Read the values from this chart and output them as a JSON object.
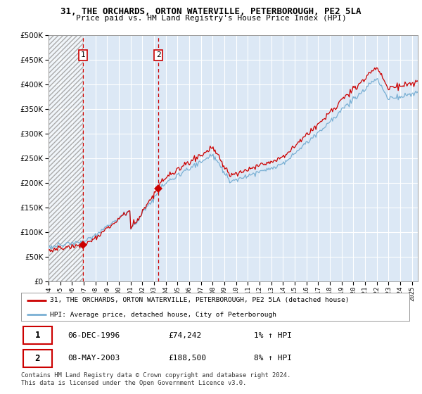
{
  "title_line1": "31, THE ORCHARDS, ORTON WATERVILLE, PETERBOROUGH, PE2 5LA",
  "title_line2": "Price paid vs. HM Land Registry's House Price Index (HPI)",
  "legend_red": "31, THE ORCHARDS, ORTON WATERVILLE, PETERBOROUGH, PE2 5LA (detached house)",
  "legend_blue": "HPI: Average price, detached house, City of Peterborough",
  "transaction1_date": "06-DEC-1996",
  "transaction1_price": "£74,242",
  "transaction1_hpi": "1% ↑ HPI",
  "transaction1_price_val": 74242,
  "transaction2_date": "08-MAY-2003",
  "transaction2_price": "£188,500",
  "transaction2_hpi": "8% ↑ HPI",
  "transaction2_price_val": 188500,
  "footnote": "Contains HM Land Registry data © Crown copyright and database right 2024.\nThis data is licensed under the Open Government Licence v3.0.",
  "ylim": [
    0,
    500000
  ],
  "yticks": [
    0,
    50000,
    100000,
    150000,
    200000,
    250000,
    300000,
    350000,
    400000,
    450000,
    500000
  ],
  "background_color": "#ffffff",
  "plot_bg_color": "#dce8f5",
  "hatch_bg_color": "#c8c8d8",
  "grid_color": "#ffffff",
  "red_color": "#cc0000",
  "blue_color": "#7ab0d4",
  "dashed_red": "#cc0000",
  "transaction1_x": 1996.92,
  "transaction2_x": 2003.37,
  "xmin": 1994.0,
  "xmax": 2025.5
}
